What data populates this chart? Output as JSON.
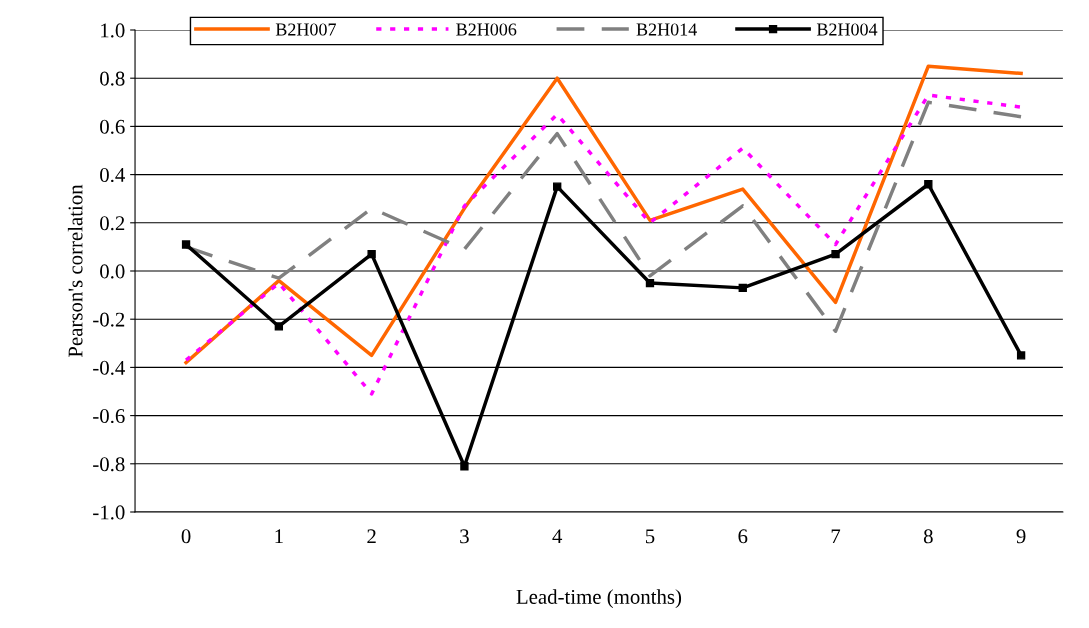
{
  "chart_data": {
    "type": "line",
    "xlabel": "Lead-time (months)",
    "ylabel": "Pearson's correlation",
    "categories": [
      "0",
      "1",
      "2",
      "3",
      "4",
      "5",
      "6",
      "7",
      "8",
      "9"
    ],
    "series": [
      {
        "name": "B2H007",
        "color": "#ff6600",
        "line_style": "solid",
        "marker": "none",
        "values": [
          -0.38,
          -0.04,
          -0.35,
          0.26,
          0.8,
          0.21,
          0.34,
          -0.13,
          0.85,
          0.82
        ]
      },
      {
        "name": "B2H006",
        "color": "#ff00ff",
        "line_style": "dotted",
        "marker": "none",
        "values": [
          -0.37,
          -0.05,
          -0.51,
          0.27,
          0.65,
          0.2,
          0.51,
          0.11,
          0.73,
          0.68
        ]
      },
      {
        "name": "B2H014",
        "color": "#808080",
        "line_style": "dashed",
        "marker": "none",
        "values": [
          0.1,
          -0.03,
          0.26,
          0.09,
          0.57,
          -0.02,
          0.27,
          -0.25,
          0.7,
          0.64
        ]
      },
      {
        "name": "B2H004",
        "color": "#000000",
        "line_style": "solid",
        "marker": "square",
        "values": [
          0.11,
          -0.23,
          0.07,
          -0.81,
          0.35,
          -0.05,
          -0.07,
          0.07,
          0.36,
          -0.35
        ]
      }
    ],
    "ylim": [
      -1.0,
      1.0
    ],
    "yticks": [
      {
        "value": -1.0,
        "label": "-1.0"
      },
      {
        "value": -0.8,
        "label": "-0.8"
      },
      {
        "value": -0.6,
        "label": "-0.6"
      },
      {
        "value": -0.4,
        "label": "-0.4"
      },
      {
        "value": -0.2,
        "label": "-0.2"
      },
      {
        "value": 0.0,
        "label": "0.0"
      },
      {
        "value": 0.2,
        "label": "0.2"
      },
      {
        "value": 0.4,
        "label": "0.4"
      },
      {
        "value": 0.6,
        "label": "0.6"
      },
      {
        "value": 0.8,
        "label": "0.8"
      },
      {
        "value": 1.0,
        "label": "1.0"
      }
    ],
    "grid": "y",
    "legend": "top"
  }
}
